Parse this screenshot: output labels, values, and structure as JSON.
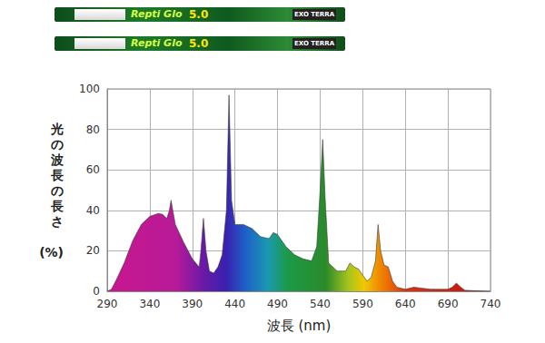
{
  "header": {
    "tubes": [
      {
        "name": "Repti Glo",
        "rating": "5.0",
        "brand": "EXO TERRA"
      },
      {
        "name": "Repti Glo",
        "rating": "5.0",
        "brand": "EXO TERRA"
      }
    ]
  },
  "chart_data": {
    "type": "area",
    "xlabel": "波長 (nm)",
    "ylabel": "光の波長の長さ",
    "yunit": "(%)",
    "x": [
      290,
      295,
      300,
      310,
      320,
      330,
      340,
      350,
      355,
      360,
      363,
      365,
      367,
      370,
      380,
      390,
      398,
      400,
      403,
      406,
      410,
      415,
      420,
      425,
      430,
      433,
      436,
      440,
      450,
      460,
      470,
      480,
      485,
      490,
      495,
      500,
      510,
      520,
      530,
      536,
      540,
      543,
      546,
      550,
      560,
      570,
      575,
      580,
      585,
      590,
      595,
      600,
      605,
      608,
      611,
      615,
      620,
      625,
      630,
      640,
      650,
      660,
      670,
      680,
      690,
      695,
      700,
      705,
      710,
      720,
      740
    ],
    "values": [
      0,
      1,
      5,
      14,
      25,
      33,
      37,
      38.5,
      38,
      36,
      40,
      45,
      40,
      33,
      24,
      16,
      12,
      20,
      36,
      20,
      10,
      9,
      12,
      18,
      40,
      97,
      45,
      33,
      33,
      31,
      27,
      26,
      29,
      28,
      25,
      22,
      18,
      16,
      15,
      22,
      50,
      75,
      45,
      14,
      10,
      10,
      14,
      12,
      11,
      8,
      5,
      7,
      15,
      33,
      20,
      13,
      12,
      5,
      2,
      1,
      2,
      1.5,
      1,
      1,
      1,
      2,
      4,
      2,
      0.5,
      0.3,
      0
    ],
    "xlim": [
      290,
      740
    ],
    "xticks": [
      290,
      340,
      390,
      440,
      490,
      540,
      590,
      640,
      690,
      740
    ],
    "ylim": [
      0,
      100
    ],
    "yticks": [
      0,
      20,
      40,
      60,
      80,
      100
    ],
    "grid": true
  }
}
